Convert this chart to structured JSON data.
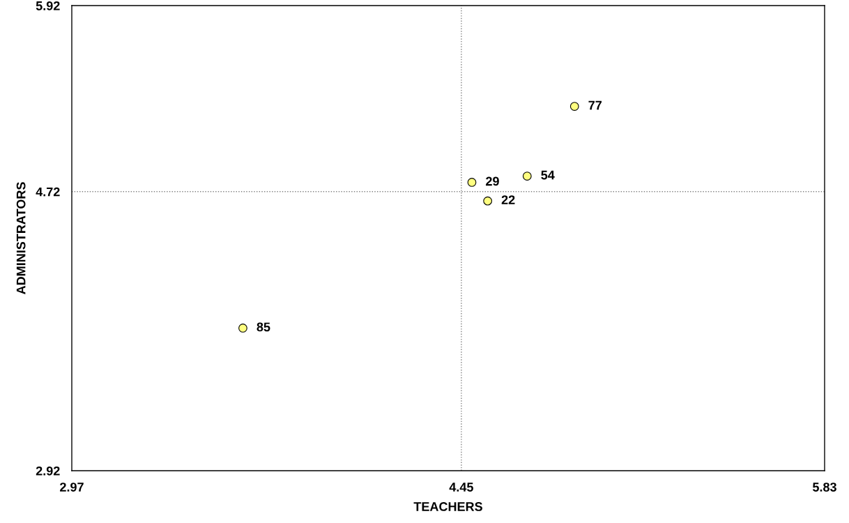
{
  "chart_data": {
    "type": "scatter",
    "xlabel": "TEACHERS",
    "ylabel": "ADMINISTRATORS",
    "x": [
      4.88,
      4.7,
      4.49,
      4.55,
      3.62
    ],
    "series": [
      {
        "color": "#ffff80",
        "values": [
          5.27,
          4.82,
          4.78,
          4.66,
          3.84
        ]
      }
    ],
    "annotations": [
      {
        "text": "77",
        "x": 4.88,
        "y": 5.27
      },
      {
        "text": "54",
        "x": 4.7,
        "y": 4.82
      },
      {
        "text": "29",
        "x": 4.49,
        "y": 4.78
      },
      {
        "text": "22",
        "x": 4.55,
        "y": 4.66
      },
      {
        "text": "85",
        "x": 3.62,
        "y": 3.84
      }
    ],
    "xlim": [
      2.97,
      5.83
    ],
    "ylim": [
      2.92,
      5.92
    ],
    "xticks": [
      2.97,
      4.45,
      5.83
    ],
    "yticks": [
      2.92,
      4.72,
      5.92
    ],
    "ref_lines": [
      {
        "axis": "x",
        "value": 4.45,
        "color": "#808080",
        "line_style": "dotted"
      },
      {
        "axis": "y",
        "value": 4.72,
        "color": "#808080",
        "line_style": "dotted"
      }
    ],
    "marker": "circle",
    "grid": false,
    "legend": false
  }
}
